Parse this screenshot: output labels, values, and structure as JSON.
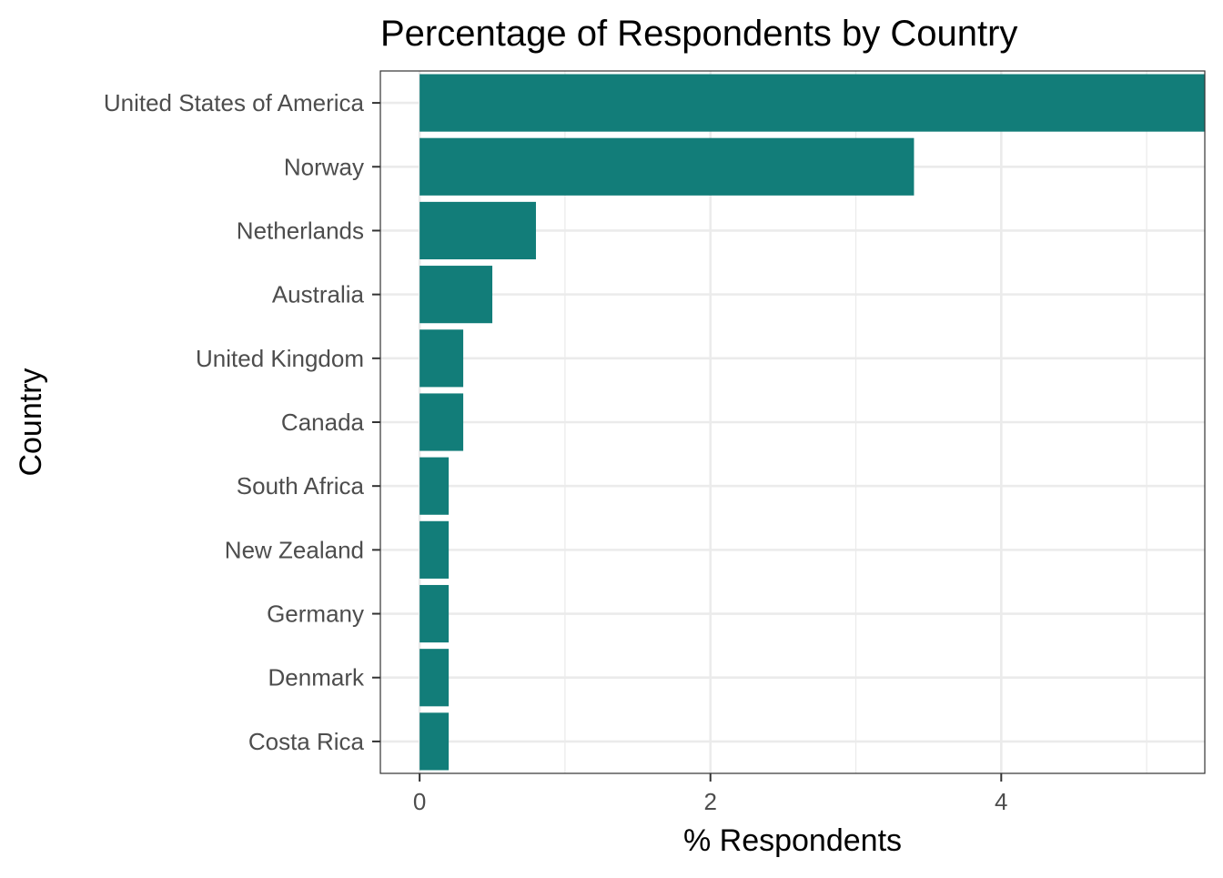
{
  "chart_data": {
    "type": "bar",
    "orientation": "horizontal",
    "title": "Percentage of Respondents by Country",
    "xlabel": "% Respondents",
    "ylabel": "Country",
    "categories": [
      "United States of America",
      "Norway",
      "Netherlands",
      "Australia",
      "United Kingdom",
      "Canada",
      "South Africa",
      "New Zealand",
      "Germany",
      "Denmark",
      "Costa Rica"
    ],
    "values": [
      5.4,
      3.4,
      0.8,
      0.5,
      0.3,
      0.3,
      0.2,
      0.2,
      0.2,
      0.2,
      0.2
    ],
    "xlim": [
      -0.27,
      5.4
    ],
    "xticks": [
      0,
      2,
      4
    ],
    "xtick_labels": [
      "0",
      "2",
      "4"
    ],
    "grid": true,
    "legend": "none",
    "bar_color": "#127d79"
  }
}
